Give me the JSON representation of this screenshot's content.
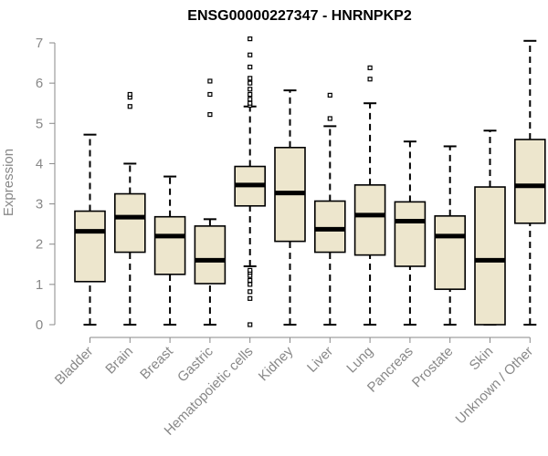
{
  "chart_data": {
    "type": "box",
    "title": "ENSG00000227347 - HNRNPKP2",
    "ylabel": "Expression",
    "xlabel": "",
    "ylim": [
      0,
      7
    ],
    "yticks": [
      0,
      1,
      2,
      3,
      4,
      5,
      6,
      7
    ],
    "categories": [
      "Bladder",
      "Brain",
      "Breast",
      "Gastric",
      "Hematopoietic cells",
      "Kidney",
      "Liver",
      "Lung",
      "Pancreas",
      "Prostate",
      "Skin",
      "Unknown / Other"
    ],
    "boxes": [
      {
        "name": "Bladder",
        "whisker_low": 0,
        "q1": 1.07,
        "median": 2.32,
        "q3": 2.82,
        "whisker_high": 4.72,
        "outliers": []
      },
      {
        "name": "Brain",
        "whisker_low": 0,
        "q1": 1.8,
        "median": 2.67,
        "q3": 3.25,
        "whisker_high": 4.0,
        "outliers": [
          5.42,
          5.65,
          5.72
        ]
      },
      {
        "name": "Breast",
        "whisker_low": 0,
        "q1": 1.25,
        "median": 2.2,
        "q3": 2.68,
        "whisker_high": 3.68,
        "outliers": []
      },
      {
        "name": "Gastric",
        "whisker_low": 0,
        "q1": 1.02,
        "median": 1.6,
        "q3": 2.45,
        "whisker_high": 2.62,
        "outliers": [
          5.22,
          5.72,
          6.05
        ]
      },
      {
        "name": "Hematopoietic cells",
        "whisker_low": 1.45,
        "q1": 2.95,
        "median": 3.47,
        "q3": 3.93,
        "whisker_high": 5.42,
        "outliers": [
          0.0,
          0.65,
          0.82,
          1.0,
          1.1,
          1.22,
          1.3,
          1.35,
          5.45,
          5.5,
          5.6,
          5.72,
          5.85,
          6.0,
          6.12,
          6.4,
          6.7,
          7.1
        ]
      },
      {
        "name": "Kidney",
        "whisker_low": 0,
        "q1": 2.07,
        "median": 3.27,
        "q3": 4.4,
        "whisker_high": 5.82,
        "outliers": []
      },
      {
        "name": "Liver",
        "whisker_low": 0,
        "q1": 1.8,
        "median": 2.37,
        "q3": 3.07,
        "whisker_high": 4.93,
        "outliers": [
          5.12,
          5.7
        ]
      },
      {
        "name": "Lung",
        "whisker_low": 0,
        "q1": 1.73,
        "median": 2.72,
        "q3": 3.47,
        "whisker_high": 5.5,
        "outliers": [
          6.1,
          6.38
        ]
      },
      {
        "name": "Pancreas",
        "whisker_low": 0,
        "q1": 1.45,
        "median": 2.57,
        "q3": 3.05,
        "whisker_high": 4.55,
        "outliers": []
      },
      {
        "name": "Prostate",
        "whisker_low": 0,
        "q1": 0.88,
        "median": 2.2,
        "q3": 2.7,
        "whisker_high": 4.43,
        "outliers": []
      },
      {
        "name": "Skin",
        "whisker_low": 0,
        "q1": 0,
        "median": 1.6,
        "q3": 3.42,
        "whisker_high": 4.82,
        "outliers": []
      },
      {
        "name": "Unknown / Other",
        "whisker_low": 0,
        "q1": 2.52,
        "median": 3.45,
        "q3": 4.6,
        "whisker_high": 7.05,
        "outliers": []
      }
    ],
    "colors": {
      "box_fill": "#ede6cd",
      "box_stroke": "#000000",
      "axis": "#888888",
      "tick_text": "#888888",
      "title": "#000000"
    },
    "grid": false,
    "legend": "none"
  }
}
